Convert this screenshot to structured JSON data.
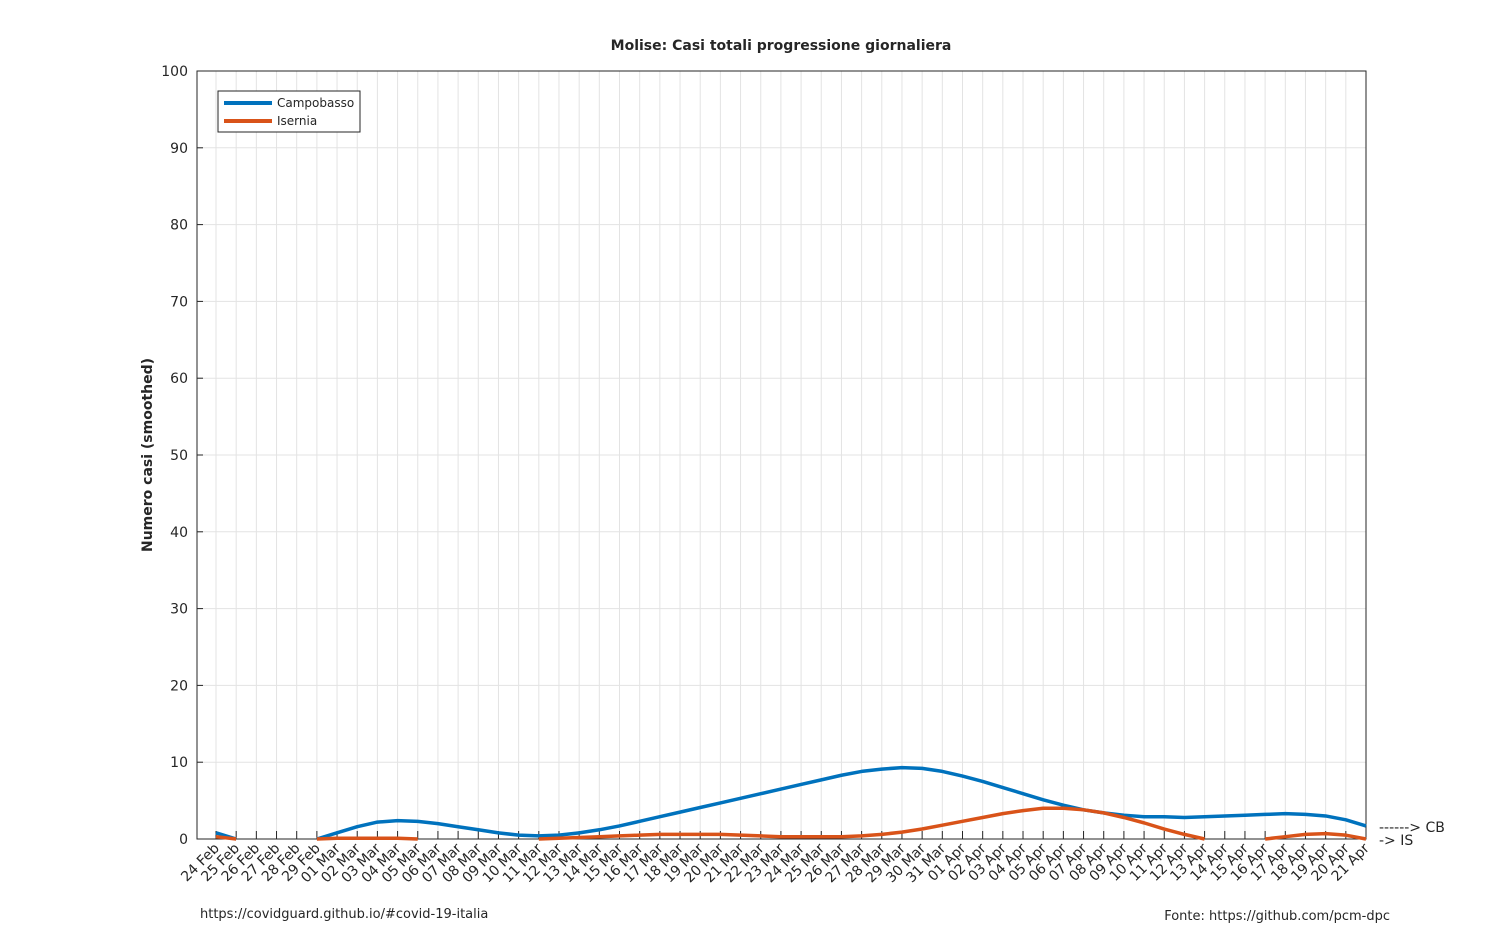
{
  "chart_data": {
    "type": "line",
    "title": "Molise: Casi totali progressione giornaliera",
    "y_label": "Numero casi (smoothed)",
    "categories": [
      "24 Feb",
      "25 Feb",
      "26 Feb",
      "27 Feb",
      "28 Feb",
      "29 Feb",
      "01 Mar",
      "02 Mar",
      "03 Mar",
      "04 Mar",
      "05 Mar",
      "06 Mar",
      "07 Mar",
      "08 Mar",
      "09 Mar",
      "10 Mar",
      "11 Mar",
      "12 Mar",
      "13 Mar",
      "14 Mar",
      "15 Mar",
      "16 Mar",
      "17 Mar",
      "18 Mar",
      "19 Mar",
      "20 Mar",
      "21 Mar",
      "22 Mar",
      "23 Mar",
      "24 Mar",
      "25 Mar",
      "26 Mar",
      "27 Mar",
      "28 Mar",
      "29 Mar",
      "30 Mar",
      "31 Mar",
      "01 Apr",
      "02 Apr",
      "03 Apr",
      "04 Apr",
      "05 Apr",
      "06 Apr",
      "07 Apr",
      "08 Apr",
      "09 Apr",
      "10 Apr",
      "11 Apr",
      "12 Apr",
      "13 Apr",
      "14 Apr",
      "15 Apr",
      "16 Apr",
      "17 Apr",
      "18 Apr",
      "19 Apr",
      "20 Apr",
      "21 Apr"
    ],
    "series": [
      {
        "name": "Campobasso",
        "color": "#0072bd",
        "values": [
          0.8,
          0,
          null,
          null,
          null,
          0,
          0.8,
          1.6,
          2.2,
          2.4,
          2.3,
          2.0,
          1.6,
          1.2,
          0.8,
          0.5,
          0.4,
          0.5,
          0.8,
          1.2,
          1.7,
          2.3,
          2.9,
          3.5,
          4.1,
          4.7,
          5.3,
          5.9,
          6.5,
          7.1,
          7.7,
          8.3,
          8.8,
          9.1,
          9.3,
          9.2,
          8.8,
          8.2,
          7.5,
          6.7,
          5.9,
          5.1,
          4.4,
          3.8,
          3.4,
          3.1,
          2.9,
          2.9,
          2.8,
          2.9,
          3.0,
          3.1,
          3.2,
          3.3,
          3.2,
          3.0,
          2.5,
          1.7
        ]
      },
      {
        "name": "Isernia",
        "color": "#d95319",
        "values": [
          0.3,
          0,
          null,
          null,
          null,
          0,
          0.1,
          0.1,
          0.1,
          0.1,
          0,
          null,
          null,
          null,
          null,
          null,
          0,
          0.1,
          0.2,
          0.3,
          0.4,
          0.5,
          0.6,
          0.6,
          0.6,
          0.6,
          0.5,
          0.4,
          0.3,
          0.3,
          0.3,
          0.3,
          0.4,
          0.6,
          0.9,
          1.3,
          1.8,
          2.3,
          2.8,
          3.3,
          3.7,
          4.0,
          4.0,
          3.8,
          3.4,
          2.8,
          2.1,
          1.3,
          0.6,
          0,
          null,
          null,
          0,
          0.3,
          0.6,
          0.7,
          0.5,
          0
        ]
      }
    ],
    "ylim": [
      0,
      100
    ],
    "yticks": [
      0,
      10,
      20,
      30,
      40,
      50,
      60,
      70,
      80,
      90,
      100
    ],
    "grid": true,
    "legend": "upper left",
    "annotations": [
      "------> CB",
      "-> IS"
    ],
    "footer_left": "https://covidguard.github.io/#covid-19-italia",
    "footer_right": "Fonte: https://github.com/pcm-dpc"
  }
}
